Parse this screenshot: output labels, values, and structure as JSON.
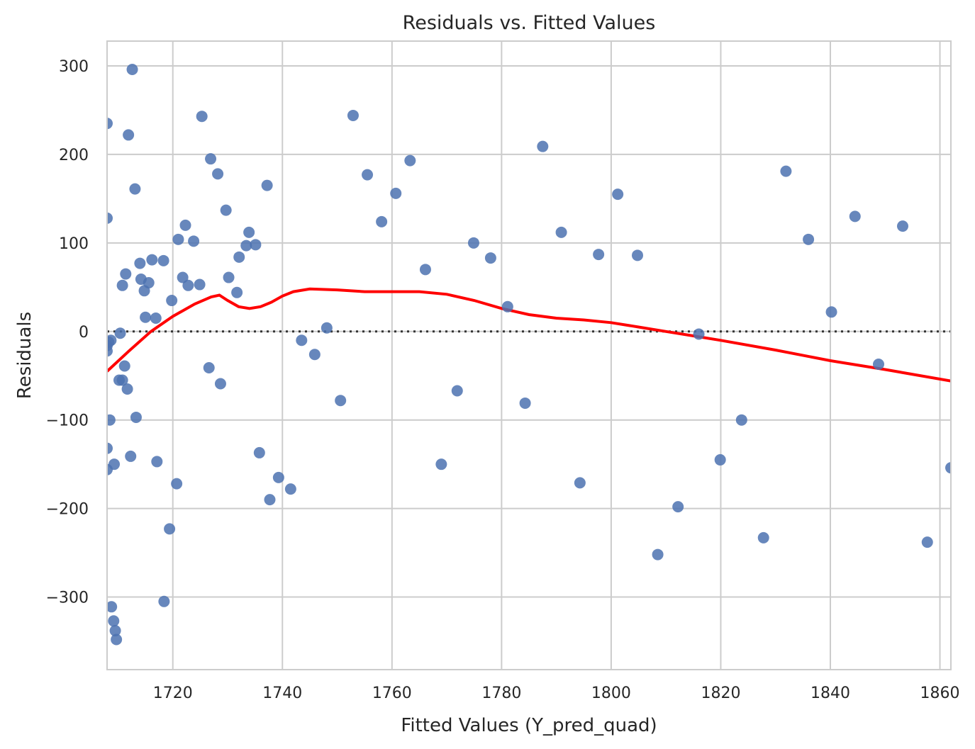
{
  "chart_data": {
    "type": "scatter",
    "title": "Residuals vs. Fitted Values",
    "xlabel": "Fitted Values (Y_pred_quad)",
    "ylabel": "Residuals",
    "xlim": [
      1708,
      1862
    ],
    "ylim": [
      -382,
      328
    ],
    "xticks": [
      1720,
      1740,
      1760,
      1780,
      1800,
      1820,
      1840,
      1860
    ],
    "yticks": [
      -300,
      -200,
      -100,
      0,
      100,
      200,
      300
    ],
    "xtick_labels": [
      "1720",
      "1740",
      "1760",
      "1780",
      "1800",
      "1820",
      "1840",
      "1860"
    ],
    "ytick_labels": [
      "−300",
      "−200",
      "−100",
      "0",
      "100",
      "200",
      "300"
    ],
    "grid": true,
    "colors": {
      "points": "#4c72b0",
      "smooth": "#ff0000",
      "zero_line": "#333333",
      "grid": "#cccccc"
    },
    "reference_line_y": 0,
    "series": [
      {
        "kind": "points",
        "x": [
          1708.0,
          1708.0,
          1708.0,
          1708.0,
          1708.0,
          1708.0,
          1708.3,
          1708.7,
          1708.5,
          1708.8,
          1709.3,
          1709.5,
          1709.7,
          1709.2,
          1710.4,
          1710.2,
          1710.8,
          1710.8,
          1711.2,
          1711.4,
          1711.7,
          1711.9,
          1712.3,
          1712.6,
          1713.1,
          1713.3,
          1714.0,
          1714.2,
          1714.8,
          1715.0,
          1715.6,
          1716.2,
          1716.9,
          1717.1,
          1718.3,
          1718.4,
          1719.4,
          1719.8,
          1720.7,
          1721.0,
          1721.8,
          1722.3,
          1722.8,
          1723.8,
          1724.9,
          1725.3,
          1726.6,
          1726.9,
          1728.2,
          1728.7,
          1729.7,
          1730.2,
          1731.7,
          1732.1,
          1733.4,
          1733.9,
          1735.1,
          1735.8,
          1737.2,
          1737.7,
          1739.3,
          1741.5,
          1743.5,
          1745.9,
          1748.1,
          1750.6,
          1752.9,
          1755.5,
          1758.1,
          1760.7,
          1763.3,
          1766.1,
          1769.0,
          1771.9,
          1774.9,
          1778.0,
          1781.1,
          1784.3,
          1787.5,
          1790.9,
          1794.3,
          1797.7,
          1801.2,
          1804.8,
          1808.5,
          1812.2,
          1816.0,
          1819.9,
          1823.8,
          1827.8,
          1831.9,
          1836.0,
          1840.2,
          1844.5,
          1848.8,
          1853.2,
          1857.7,
          1862.0
        ],
        "y": [
          235,
          128,
          -132,
          -156,
          -22,
          -16,
          -12,
          -10,
          -100,
          -311,
          -150,
          -338,
          -348,
          -327,
          -2,
          -55,
          -55,
          52,
          -39,
          65,
          -65,
          222,
          -141,
          296,
          161,
          -97,
          77,
          59,
          46,
          16,
          55,
          81,
          15,
          -147,
          80,
          -305,
          -223,
          35,
          -172,
          104,
          61,
          120,
          52,
          102,
          53,
          243,
          -41,
          195,
          178,
          -59,
          137,
          61,
          44,
          84,
          97,
          112,
          98,
          -137,
          165,
          -190,
          -165,
          -178,
          -10,
          -26,
          4,
          -78,
          244,
          177,
          124,
          156,
          193,
          70,
          -150,
          -67,
          100,
          83,
          28,
          -81,
          209,
          112,
          -171,
          87,
          155,
          86,
          -252,
          -198,
          -3,
          -145,
          -100,
          -233,
          181,
          104,
          22,
          130,
          -37,
          119,
          -238,
          -154
        ]
      },
      {
        "kind": "smooth",
        "x": [
          1708,
          1712,
          1716,
          1720,
          1724,
          1727,
          1728.5,
          1730,
          1732,
          1734,
          1736,
          1738,
          1740,
          1742,
          1745,
          1750,
          1755,
          1760,
          1765,
          1770,
          1775,
          1780,
          1785,
          1790,
          1795,
          1800,
          1805,
          1810,
          1815,
          1820,
          1830,
          1840,
          1850,
          1862
        ],
        "y": [
          -45,
          -22,
          0,
          17,
          31,
          39,
          41,
          35,
          28,
          26,
          28,
          33,
          40,
          45,
          48,
          47,
          45,
          45,
          45,
          42,
          35,
          26,
          19,
          15,
          13,
          10,
          5,
          0,
          -5,
          -10,
          -21,
          -33,
          -43,
          -56
        ]
      }
    ]
  }
}
